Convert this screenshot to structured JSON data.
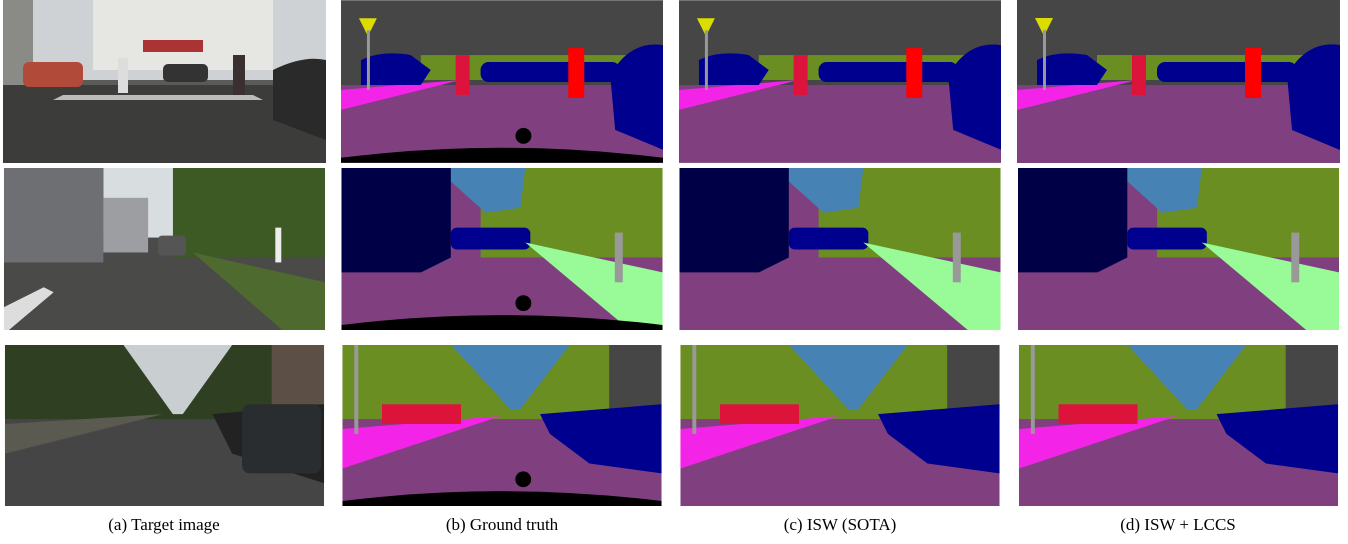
{
  "figure": {
    "captions": [
      "(a)  Target image",
      "(b)  Ground truth",
      "(c)  ISW (SOTA)",
      "(d)  ISW + LCCS"
    ]
  }
}
